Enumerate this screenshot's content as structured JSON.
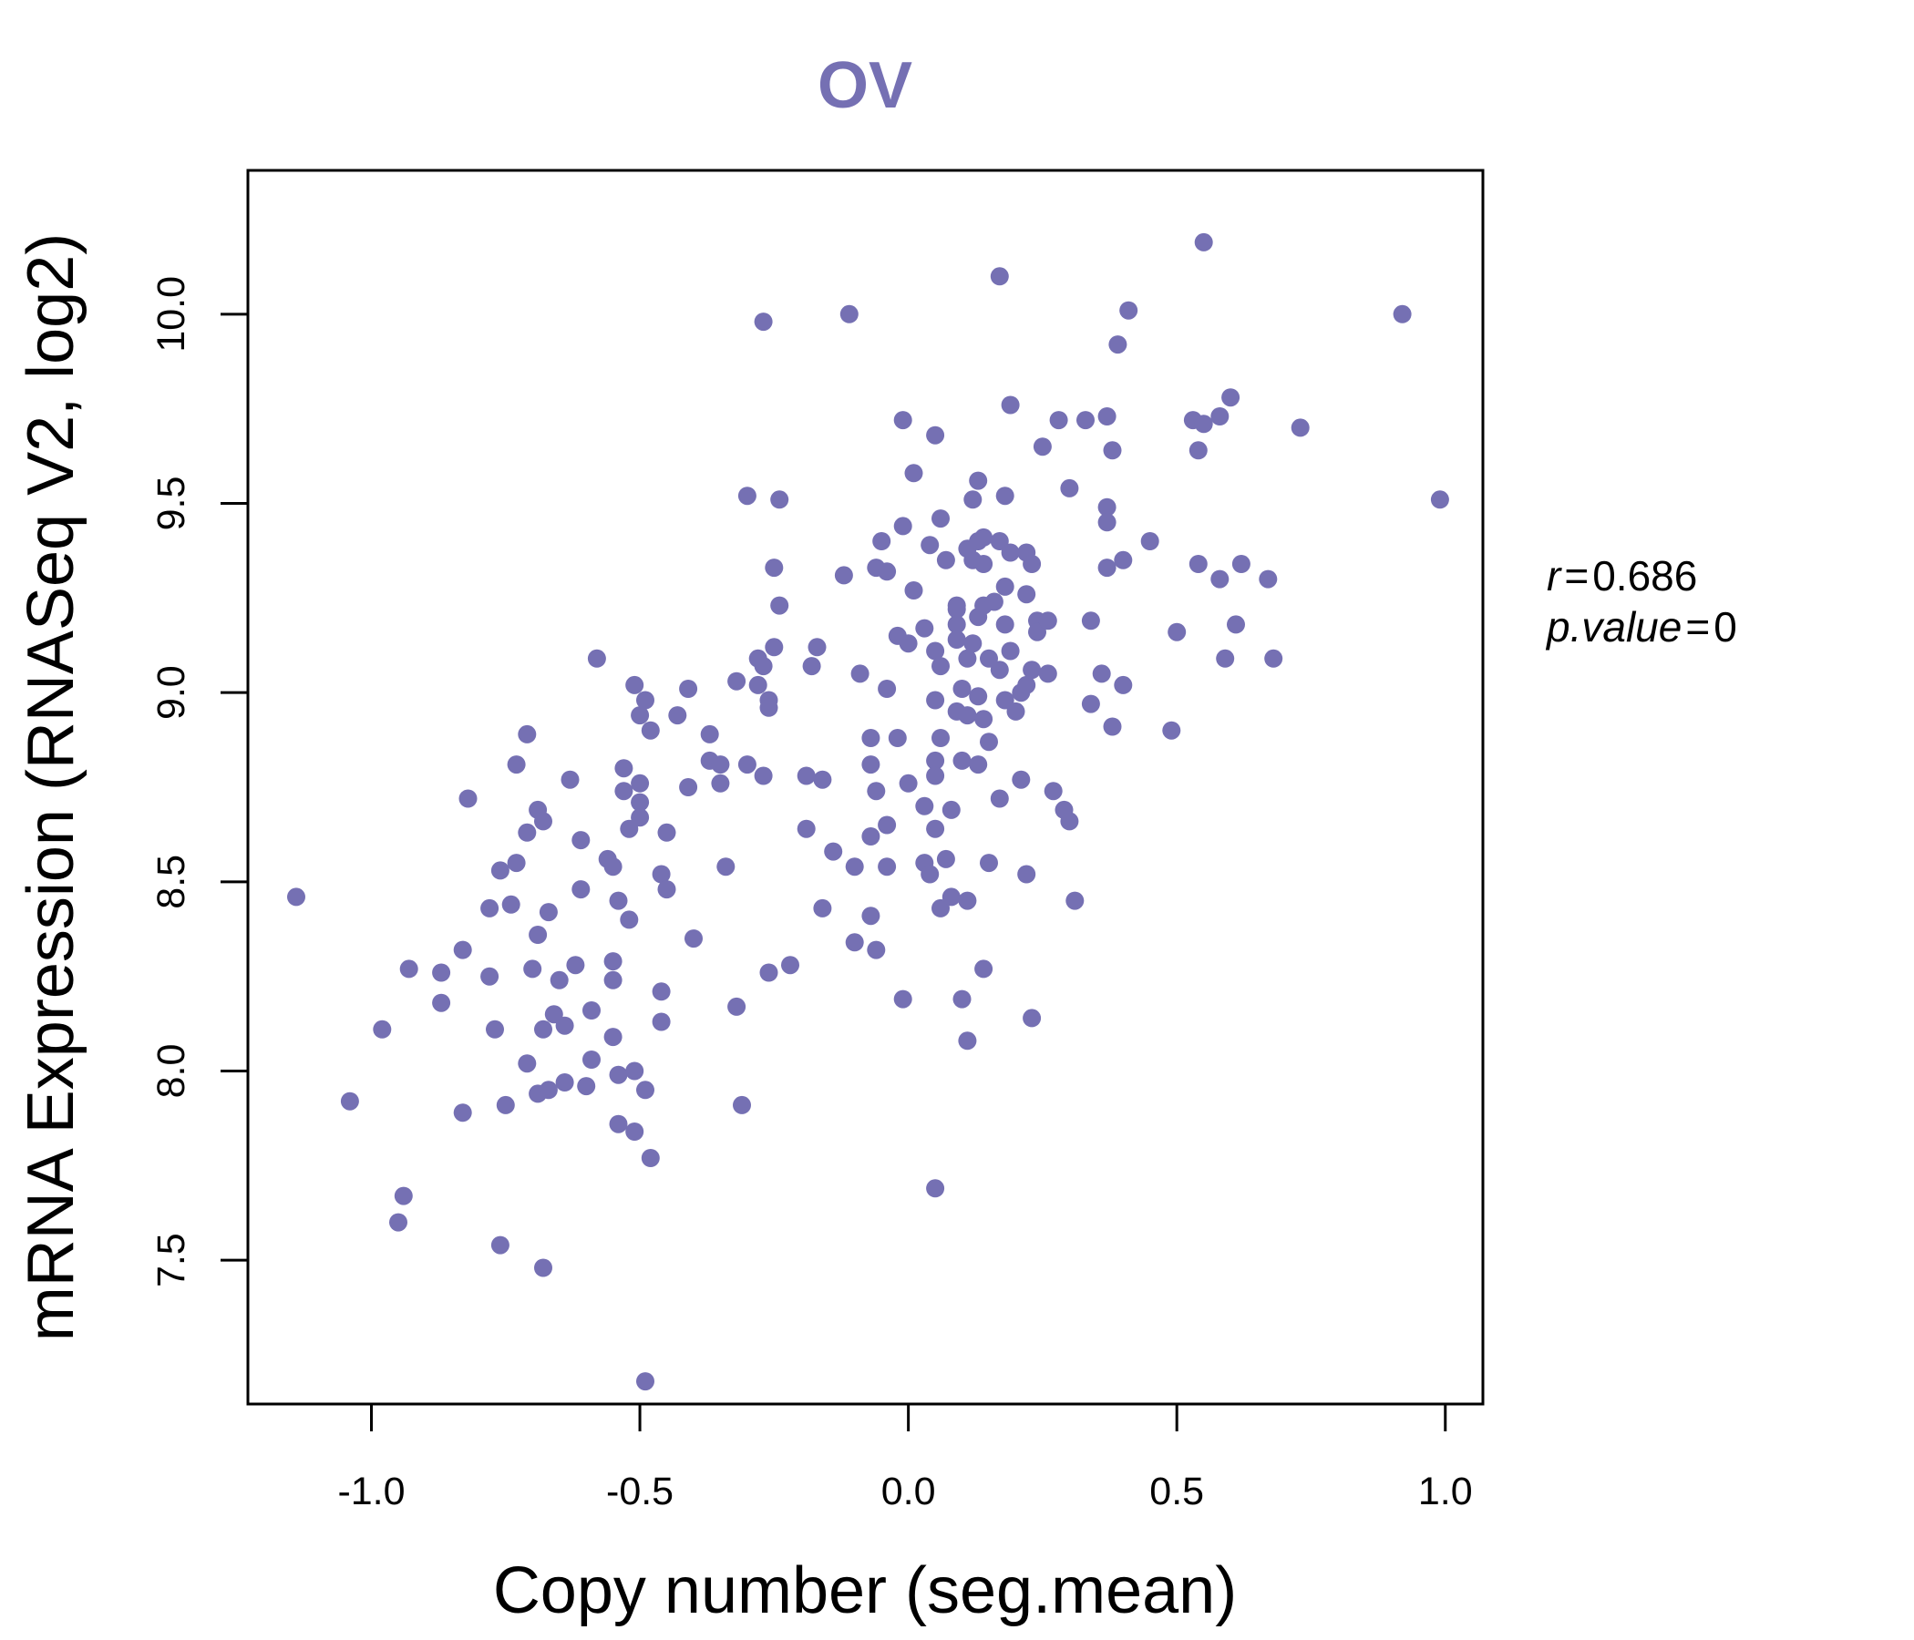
{
  "chart_data": {
    "type": "scatter",
    "title": "OV",
    "xlabel": "Copy number (seg.mean)",
    "ylabel": "mRNA Expression (RNASeq V2, log2)",
    "xlim": [
      -1.23,
      1.07
    ],
    "ylim": [
      7.12,
      10.38
    ],
    "xticks": [
      -1.0,
      -0.5,
      0.0,
      0.5,
      1.0
    ],
    "xtick_labels": [
      "-1.0",
      "-0.5",
      "0.0",
      "0.5",
      "1.0"
    ],
    "yticks": [
      7.5,
      8.0,
      8.5,
      9.0,
      9.5,
      10.0
    ],
    "ytick_labels": [
      "7.5",
      "8.0",
      "8.5",
      "9.0",
      "9.5",
      "10.0"
    ],
    "stats": {
      "r_label": "r",
      "r_value": "0.686",
      "p_label": "p.value",
      "p_value": "0"
    },
    "colors": {
      "points": "#7570b3",
      "title": "#7570b3",
      "axis": "#000000"
    },
    "points": [
      [
        -1.14,
        8.46
      ],
      [
        -1.04,
        7.92
      ],
      [
        -0.98,
        8.11
      ],
      [
        -0.94,
        7.67
      ],
      [
        -0.95,
        7.6
      ],
      [
        -0.93,
        8.27
      ],
      [
        -0.87,
        8.26
      ],
      [
        -0.87,
        8.18
      ],
      [
        -0.83,
        8.32
      ],
      [
        -0.82,
        8.72
      ],
      [
        -0.83,
        7.89
      ],
      [
        -0.78,
        8.43
      ],
      [
        -0.78,
        8.25
      ],
      [
        -0.77,
        8.11
      ],
      [
        -0.76,
        8.53
      ],
      [
        -0.76,
        7.54
      ],
      [
        -0.74,
        8.44
      ],
      [
        -0.75,
        7.91
      ],
      [
        -0.73,
        8.81
      ],
      [
        -0.73,
        8.55
      ],
      [
        -0.71,
        8.89
      ],
      [
        -0.71,
        8.63
      ],
      [
        -0.7,
        8.27
      ],
      [
        -0.69,
        8.69
      ],
      [
        -0.69,
        8.36
      ],
      [
        -0.68,
        8.66
      ],
      [
        -0.67,
        8.42
      ],
      [
        -0.68,
        8.11
      ],
      [
        -0.69,
        7.94
      ],
      [
        -0.71,
        8.02
      ],
      [
        -0.68,
        7.48
      ],
      [
        -0.67,
        7.95
      ],
      [
        -0.66,
        8.15
      ],
      [
        -0.65,
        8.24
      ],
      [
        -0.64,
        8.12
      ],
      [
        -0.64,
        7.97
      ],
      [
        -0.63,
        8.77
      ],
      [
        -0.62,
        8.28
      ],
      [
        -0.61,
        8.61
      ],
      [
        -0.61,
        8.48
      ],
      [
        -0.6,
        7.96
      ],
      [
        -0.59,
        8.16
      ],
      [
        -0.59,
        8.03
      ],
      [
        -0.58,
        9.09
      ],
      [
        -0.56,
        8.56
      ],
      [
        -0.55,
        8.54
      ],
      [
        -0.55,
        8.29
      ],
      [
        -0.55,
        8.24
      ],
      [
        -0.55,
        8.09
      ],
      [
        -0.54,
        8.45
      ],
      [
        -0.54,
        7.99
      ],
      [
        -0.54,
        7.86
      ],
      [
        -0.53,
        8.8
      ],
      [
        -0.53,
        8.74
      ],
      [
        -0.52,
        8.64
      ],
      [
        -0.52,
        8.4
      ],
      [
        -0.51,
        9.02
      ],
      [
        -0.51,
        8.0
      ],
      [
        -0.5,
        8.94
      ],
      [
        -0.5,
        8.76
      ],
      [
        -0.5,
        8.71
      ],
      [
        -0.5,
        8.67
      ],
      [
        -0.51,
        7.84
      ],
      [
        -0.49,
        8.98
      ],
      [
        -0.49,
        7.95
      ],
      [
        -0.48,
        8.9
      ],
      [
        -0.48,
        7.77
      ],
      [
        -0.49,
        7.18
      ],
      [
        -0.46,
        8.52
      ],
      [
        -0.46,
        8.21
      ],
      [
        -0.46,
        8.13
      ],
      [
        -0.45,
        8.63
      ],
      [
        -0.45,
        8.48
      ],
      [
        -0.43,
        8.94
      ],
      [
        -0.41,
        9.01
      ],
      [
        -0.41,
        8.75
      ],
      [
        -0.4,
        8.35
      ],
      [
        -0.37,
        8.89
      ],
      [
        -0.37,
        8.82
      ],
      [
        -0.35,
        8.81
      ],
      [
        -0.35,
        8.76
      ],
      [
        -0.34,
        8.54
      ],
      [
        -0.32,
        8.17
      ],
      [
        -0.32,
        9.03
      ],
      [
        -0.3,
        9.52
      ],
      [
        -0.3,
        8.81
      ],
      [
        -0.31,
        7.91
      ],
      [
        -0.28,
        9.09
      ],
      [
        -0.28,
        9.02
      ],
      [
        -0.27,
        9.07
      ],
      [
        -0.27,
        8.78
      ],
      [
        -0.26,
        8.98
      ],
      [
        -0.26,
        8.96
      ],
      [
        -0.26,
        8.26
      ],
      [
        -0.27,
        9.98
      ],
      [
        -0.25,
        9.33
      ],
      [
        -0.25,
        9.12
      ],
      [
        -0.24,
        9.51
      ],
      [
        -0.24,
        9.23
      ],
      [
        -0.22,
        8.28
      ],
      [
        -0.19,
        8.78
      ],
      [
        -0.19,
        8.64
      ],
      [
        -0.18,
        9.07
      ],
      [
        -0.17,
        9.12
      ],
      [
        -0.16,
        8.77
      ],
      [
        -0.16,
        8.43
      ],
      [
        -0.14,
        8.58
      ],
      [
        -0.12,
        9.31
      ],
      [
        -0.11,
        10.0
      ],
      [
        -0.1,
        8.54
      ],
      [
        -0.1,
        8.34
      ],
      [
        -0.09,
        9.05
      ],
      [
        -0.07,
        8.88
      ],
      [
        -0.07,
        8.81
      ],
      [
        -0.07,
        8.62
      ],
      [
        -0.07,
        8.41
      ],
      [
        -0.06,
        9.33
      ],
      [
        -0.06,
        8.74
      ],
      [
        -0.06,
        8.32
      ],
      [
        -0.05,
        9.4
      ],
      [
        -0.04,
        9.32
      ],
      [
        -0.04,
        9.01
      ],
      [
        -0.04,
        8.65
      ],
      [
        -0.04,
        8.54
      ],
      [
        -0.02,
        9.15
      ],
      [
        -0.02,
        8.88
      ],
      [
        -0.01,
        9.72
      ],
      [
        -0.01,
        9.44
      ],
      [
        -0.01,
        8.19
      ],
      [
        0.0,
        9.13
      ],
      [
        0.01,
        9.58
      ],
      [
        0.01,
        9.27
      ],
      [
        0.0,
        8.76
      ],
      [
        0.03,
        9.17
      ],
      [
        0.03,
        8.7
      ],
      [
        0.03,
        8.55
      ],
      [
        0.04,
        9.39
      ],
      [
        0.04,
        8.52
      ],
      [
        0.05,
        9.11
      ],
      [
        0.05,
        8.98
      ],
      [
        0.05,
        8.82
      ],
      [
        0.05,
        8.78
      ],
      [
        0.05,
        8.64
      ],
      [
        0.05,
        9.68
      ],
      [
        0.06,
        9.46
      ],
      [
        0.06,
        9.07
      ],
      [
        0.06,
        8.88
      ],
      [
        0.06,
        8.43
      ],
      [
        0.05,
        7.69
      ],
      [
        0.07,
        9.35
      ],
      [
        0.07,
        8.56
      ],
      [
        0.08,
        8.69
      ],
      [
        0.08,
        8.46
      ],
      [
        0.09,
        9.22
      ],
      [
        0.09,
        9.18
      ],
      [
        0.09,
        9.14
      ],
      [
        0.09,
        8.95
      ],
      [
        0.09,
        9.23
      ],
      [
        0.1,
        9.01
      ],
      [
        0.1,
        8.82
      ],
      [
        0.1,
        8.19
      ],
      [
        0.11,
        9.38
      ],
      [
        0.11,
        9.09
      ],
      [
        0.11,
        8.94
      ],
      [
        0.11,
        8.45
      ],
      [
        0.11,
        8.08
      ],
      [
        0.12,
        9.35
      ],
      [
        0.12,
        9.13
      ],
      [
        0.12,
        9.51
      ],
      [
        0.13,
        9.56
      ],
      [
        0.13,
        9.4
      ],
      [
        0.13,
        9.2
      ],
      [
        0.13,
        8.99
      ],
      [
        0.13,
        8.81
      ],
      [
        0.14,
        9.41
      ],
      [
        0.14,
        9.34
      ],
      [
        0.14,
        9.23
      ],
      [
        0.14,
        8.93
      ],
      [
        0.14,
        8.27
      ],
      [
        0.15,
        9.09
      ],
      [
        0.15,
        8.87
      ],
      [
        0.15,
        8.55
      ],
      [
        0.16,
        9.24
      ],
      [
        0.17,
        9.4
      ],
      [
        0.17,
        9.06
      ],
      [
        0.17,
        8.72
      ],
      [
        0.17,
        10.1
      ],
      [
        0.18,
        9.52
      ],
      [
        0.18,
        9.28
      ],
      [
        0.18,
        9.18
      ],
      [
        0.18,
        8.98
      ],
      [
        0.19,
        9.76
      ],
      [
        0.19,
        9.37
      ],
      [
        0.19,
        9.11
      ],
      [
        0.2,
        8.95
      ],
      [
        0.21,
        8.77
      ],
      [
        0.21,
        9.0
      ],
      [
        0.22,
        9.37
      ],
      [
        0.22,
        9.26
      ],
      [
        0.22,
        9.02
      ],
      [
        0.22,
        8.52
      ],
      [
        0.23,
        9.34
      ],
      [
        0.23,
        9.06
      ],
      [
        0.23,
        8.14
      ],
      [
        0.24,
        9.19
      ],
      [
        0.24,
        9.16
      ],
      [
        0.25,
        9.65
      ],
      [
        0.26,
        9.19
      ],
      [
        0.26,
        9.05
      ],
      [
        0.27,
        8.74
      ],
      [
        0.28,
        9.72
      ],
      [
        0.29,
        8.69
      ],
      [
        0.3,
        8.66
      ],
      [
        0.3,
        9.54
      ],
      [
        0.31,
        8.45
      ],
      [
        0.33,
        9.72
      ],
      [
        0.34,
        9.19
      ],
      [
        0.34,
        8.97
      ],
      [
        0.36,
        9.05
      ],
      [
        0.37,
        9.49
      ],
      [
        0.37,
        9.45
      ],
      [
        0.37,
        9.73
      ],
      [
        0.37,
        9.33
      ],
      [
        0.38,
        8.91
      ],
      [
        0.38,
        9.64
      ],
      [
        0.39,
        9.92
      ],
      [
        0.4,
        9.35
      ],
      [
        0.4,
        9.02
      ],
      [
        0.41,
        10.01
      ],
      [
        0.45,
        9.4
      ],
      [
        0.49,
        8.9
      ],
      [
        0.5,
        9.16
      ],
      [
        0.53,
        9.72
      ],
      [
        0.54,
        9.64
      ],
      [
        0.54,
        9.34
      ],
      [
        0.55,
        9.71
      ],
      [
        0.55,
        10.19
      ],
      [
        0.58,
        9.73
      ],
      [
        0.58,
        9.3
      ],
      [
        0.59,
        9.09
      ],
      [
        0.6,
        9.78
      ],
      [
        0.61,
        9.18
      ],
      [
        0.62,
        9.34
      ],
      [
        0.67,
        9.3
      ],
      [
        0.68,
        9.09
      ],
      [
        0.73,
        9.7
      ],
      [
        0.92,
        10.0
      ],
      [
        0.99,
        9.51
      ]
    ]
  }
}
